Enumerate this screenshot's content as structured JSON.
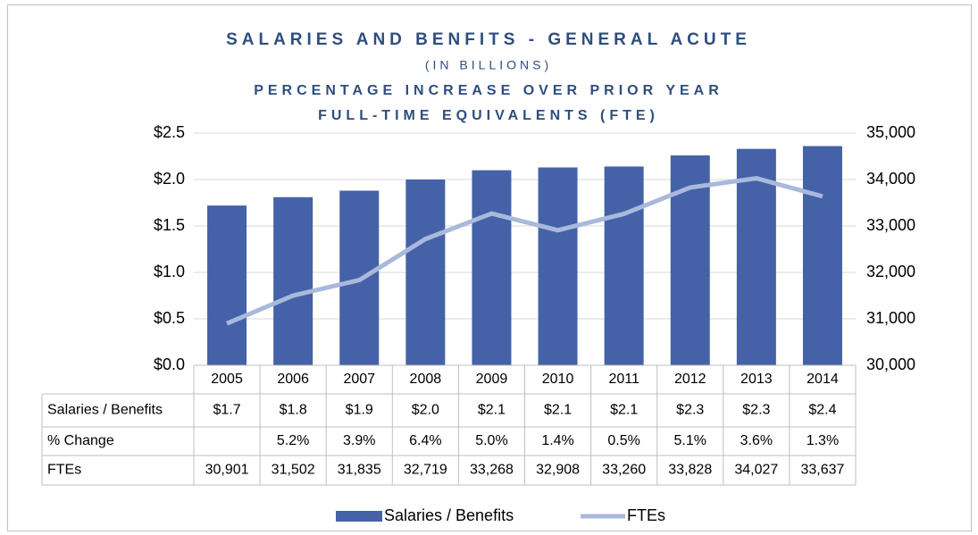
{
  "chart_data": {
    "type": "bar_line",
    "title": "SALARIES AND BENFITS - GENERAL ACUTE",
    "subtitles": [
      "(IN BILLIONS)",
      "PERCENTAGE INCREASE OVER PRIOR YEAR",
      "FULL-TIME EQUIVALENTS (FTE)"
    ],
    "categories": [
      "2005",
      "2006",
      "2007",
      "2008",
      "2009",
      "2010",
      "2011",
      "2012",
      "2013",
      "2014"
    ],
    "series": [
      {
        "name": "Salaries / Benefits",
        "type": "bar",
        "color": "#4562a8",
        "values": [
          1.72,
          1.81,
          1.88,
          2.0,
          2.1,
          2.13,
          2.14,
          2.26,
          2.33,
          2.36
        ],
        "value_labels": [
          "$1.7",
          "$1.8",
          "$1.9",
          "$2.0",
          "$2.1",
          "$2.1",
          "$2.1",
          "$2.3",
          "$2.3",
          "$2.4"
        ]
      },
      {
        "name": "FTEs",
        "type": "line",
        "axis": "y2",
        "color": "#a9b9dc",
        "values": [
          30901,
          31502,
          31835,
          32719,
          33268,
          32908,
          33260,
          33828,
          34027,
          33637
        ],
        "value_labels": [
          "30,901",
          "31,502",
          "31,835",
          "32,719",
          "33,268",
          "32,908",
          "33,260",
          "33,828",
          "34,027",
          "33,637"
        ]
      }
    ],
    "pct_change": {
      "name": "% Change",
      "values": [
        null,
        5.2,
        3.9,
        6.4,
        5.0,
        1.4,
        0.5,
        5.1,
        3.6,
        1.3
      ],
      "value_labels": [
        null,
        "5.2%",
        "3.9%",
        "6.4%",
        "5.0%",
        "1.4%",
        "0.5%",
        "5.1%",
        "3.6%",
        "1.3%"
      ]
    },
    "ylim": [
      0,
      2.5
    ],
    "yticks": [
      {
        "value": 0,
        "label": "$0.0"
      },
      {
        "value": 0.5,
        "label": "$0.5"
      },
      {
        "value": 1.0,
        "label": "$1.0"
      },
      {
        "value": 1.5,
        "label": "$1.5"
      },
      {
        "value": 2.0,
        "label": "$2.0"
      },
      {
        "value": 2.5,
        "label": "$2.5"
      }
    ],
    "y2lim": [
      30000,
      35000
    ],
    "y2ticks": [
      {
        "value": 30000,
        "label": "30,000"
      },
      {
        "value": 31000,
        "label": "31,000"
      },
      {
        "value": 32000,
        "label": "32,000"
      },
      {
        "value": 33000,
        "label": "33,000"
      },
      {
        "value": 34000,
        "label": "34,000"
      },
      {
        "value": 35000,
        "label": "35,000"
      }
    ],
    "grid": true,
    "legend": "bottom"
  }
}
